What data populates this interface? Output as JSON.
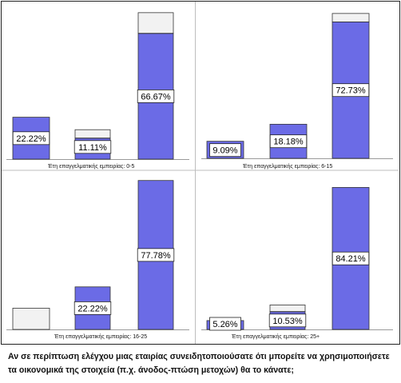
{
  "chart_data": [
    {
      "type": "bar",
      "panel_label": "Έτη επαγγελματικής εμπειρίας: 0-5",
      "categories": [
        "",
        "",
        ""
      ],
      "series": [
        {
          "values": [
            22.22,
            11.11,
            66.67
          ],
          "color": "#6b6be6"
        },
        {
          "values": [
            0,
            4.5,
            11.0
          ],
          "color": "#f2f2f2"
        }
      ],
      "data_labels": [
        "22.22%",
        "11.11%",
        "66.67%"
      ],
      "ylim": [
        0,
        81
      ]
    },
    {
      "type": "bar",
      "panel_label": "Έτη επαγγελματικής εμπειρίας: 6-15",
      "categories": [
        "",
        "",
        ""
      ],
      "series": [
        {
          "values": [
            9.09,
            18.18,
            72.73
          ],
          "color": "#6b6be6"
        },
        {
          "values": [
            0,
            0,
            4.5
          ],
          "color": "#f2f2f2"
        }
      ],
      "data_labels": [
        "9.09%",
        "18.18%",
        "72.73%"
      ],
      "ylim": [
        0,
        81
      ]
    },
    {
      "type": "bar",
      "panel_label": "Έτη επαγγελματικής εμπειρίας: 16-25",
      "categories": [
        "",
        "",
        ""
      ],
      "series": [
        {
          "values": [
            0,
            22.22,
            77.78
          ],
          "color": "#6b6be6"
        },
        {
          "values": [
            11.11,
            0,
            0
          ],
          "color": "#f2f2f2"
        }
      ],
      "data_labels": [
        "",
        "22.22%",
        "77.78%"
      ],
      "ylim": [
        0,
        81
      ]
    },
    {
      "type": "bar",
      "panel_label": "Έτη επαγγελματικής εμπειρίας: 25+",
      "categories": [
        "",
        "",
        ""
      ],
      "series": [
        {
          "values": [
            5.26,
            10.53,
            84.21
          ],
          "color": "#6b6be6"
        },
        {
          "values": [
            0,
            4.0,
            0
          ],
          "color": "#f2f2f2"
        }
      ],
      "data_labels": [
        "5.26%",
        "10.53%",
        "84.21%"
      ],
      "ylim": [
        0,
        92
      ]
    }
  ],
  "caption": {
    "line1": "Αν σε περίπτωση ελέγχου μιας εταιρίας συνειδητοποιούσατε ότι μπορείτε να χρησιμοποιήσετε",
    "line2": "τα οικονομικά της στοιχεία (π.χ. άνοδος-πτώση μετοχών) θα το κάνατε;"
  }
}
